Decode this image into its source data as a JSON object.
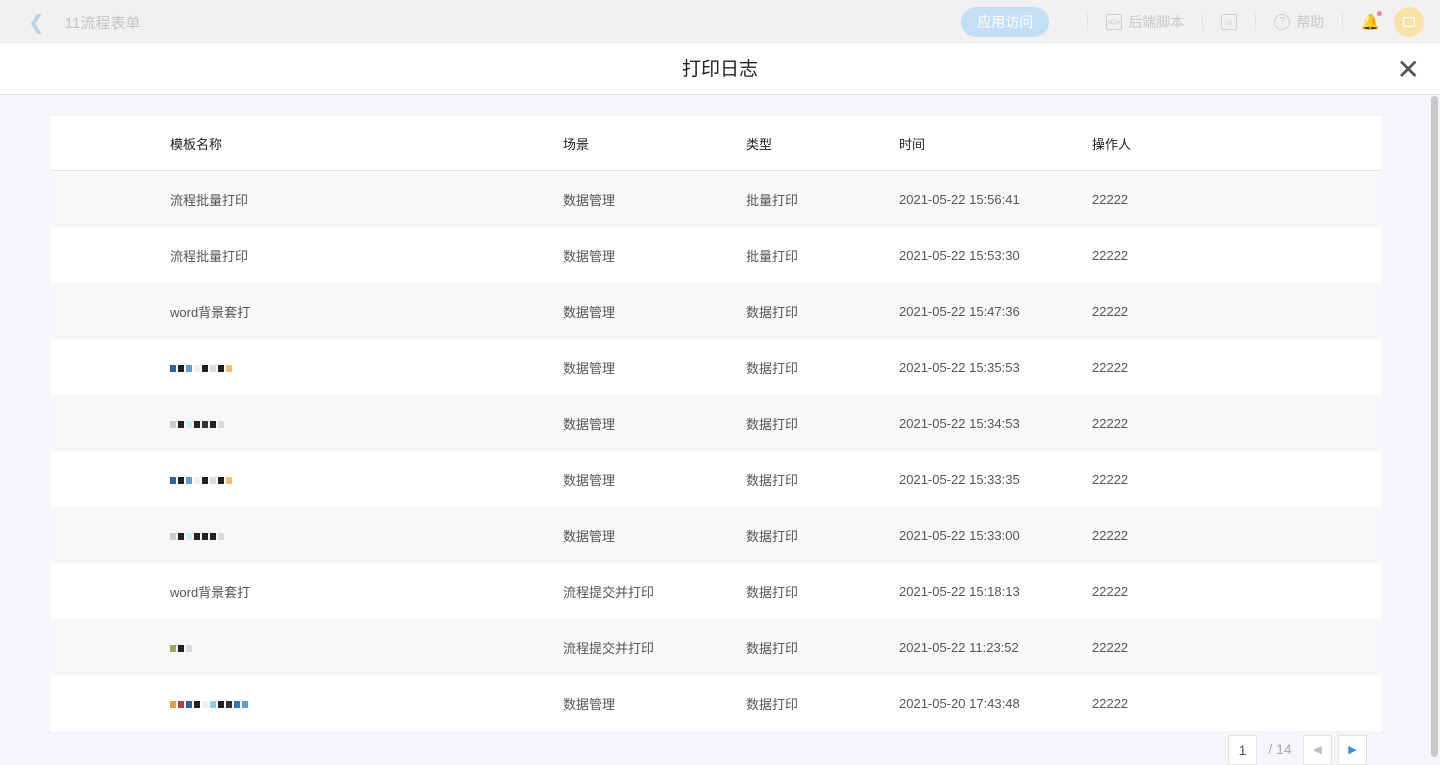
{
  "topbar": {
    "title": "11流程表单",
    "visit_button": "应用访问",
    "backend_script": "后端脚本",
    "help": "帮助"
  },
  "dialog": {
    "title": "打印日志"
  },
  "table": {
    "headers": [
      "模板名称",
      "场景",
      "类型",
      "时间",
      "操作人"
    ],
    "rows": [
      {
        "name": "流程批量打印",
        "scene": "数据管理",
        "type": "批量打印",
        "time": "2021-05-22 15:56:41",
        "operator": "22222"
      },
      {
        "name": "流程批量打印",
        "scene": "数据管理",
        "type": "批量打印",
        "time": "2021-05-22 15:53:30",
        "operator": "22222"
      },
      {
        "name": "word背景套打",
        "scene": "数据管理",
        "type": "数据打印",
        "time": "2021-05-22 15:47:36",
        "operator": "22222"
      },
      {
        "name": "",
        "scene": "数据管理",
        "type": "数据打印",
        "time": "2021-05-22 15:35:53",
        "operator": "22222"
      },
      {
        "name": "",
        "scene": "数据管理",
        "type": "数据打印",
        "time": "2021-05-22 15:34:53",
        "operator": "22222"
      },
      {
        "name": "",
        "scene": "数据管理",
        "type": "数据打印",
        "time": "2021-05-22 15:33:35",
        "operator": "22222"
      },
      {
        "name": "",
        "scene": "数据管理",
        "type": "数据打印",
        "time": "2021-05-22 15:33:00",
        "operator": "22222"
      },
      {
        "name": "word背景套打",
        "scene": "流程提交并打印",
        "type": "数据打印",
        "time": "2021-05-22 15:18:13",
        "operator": "22222"
      },
      {
        "name": "",
        "scene": "流程提交并打印",
        "type": "数据打印",
        "time": "2021-05-22 11:23:52",
        "operator": "22222"
      },
      {
        "name": "",
        "scene": "数据管理",
        "type": "数据打印",
        "time": "2021-05-20 17:43:48",
        "operator": "22222"
      }
    ]
  },
  "pagination": {
    "current": "1",
    "total": "/ 14"
  },
  "colors": {
    "accent": "#3d8fe0",
    "visit_button": "#c3dff5"
  }
}
